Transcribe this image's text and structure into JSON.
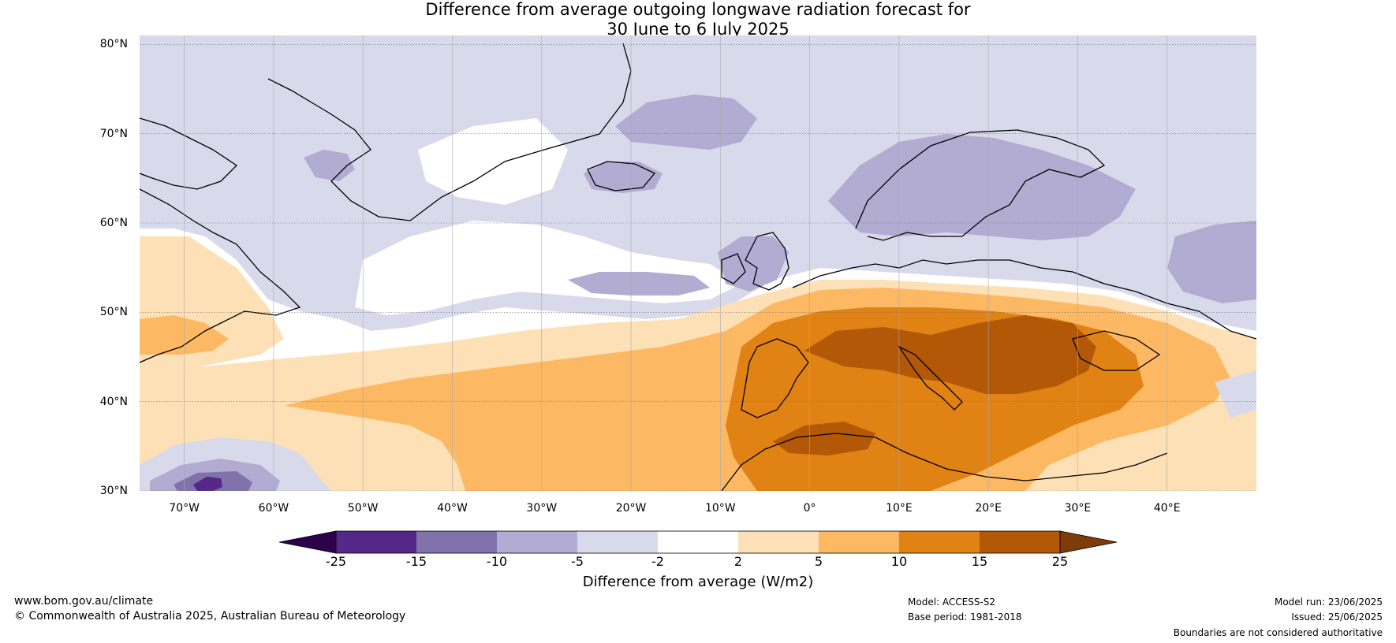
{
  "title": {
    "line1": "Difference from average outgoing longwave radiation forecast for",
    "line2": "30 June to 6 July 2025"
  },
  "map": {
    "lat_labels": [
      "80°N",
      "70°N",
      "60°N",
      "50°N",
      "40°N",
      "30°N"
    ],
    "lon_labels": [
      "70°W",
      "60°W",
      "50°W",
      "40°W",
      "30°W",
      "20°W",
      "10°W",
      "0°",
      "10°E",
      "20°E",
      "30°E",
      "40°E"
    ],
    "lon_range": [
      -75,
      50
    ],
    "lat_range": [
      30,
      81
    ],
    "colors": {
      "n25": "#2d004b",
      "n15": "#542788",
      "n10": "#8073ac",
      "n5": "#b2abd2",
      "n2": "#d8daeb",
      "z": "#ffffff",
      "p2": "#fee0b6",
      "p5": "#fdb863",
      "p10": "#e08214",
      "p15": "#b35806",
      "p25": "#7f3b08"
    }
  },
  "colorbar": {
    "ticks": [
      "-25",
      "-15",
      "-10",
      "-5",
      "-2",
      "2",
      "5",
      "10",
      "15",
      "25"
    ],
    "label": "Difference from average (W/m2)"
  },
  "footer": {
    "website": "www.bom.gov.au/climate",
    "copyright": "© Commonwealth of Australia 2025, Australian Bureau of Meteorology",
    "model": "Model: ACCESS-S2",
    "base_period": "Base period: 1981-2018",
    "model_run": "Model run: 23/06/2025",
    "issued": "Issued: 25/06/2025",
    "boundaries": "Boundaries are not considered authoritative"
  }
}
